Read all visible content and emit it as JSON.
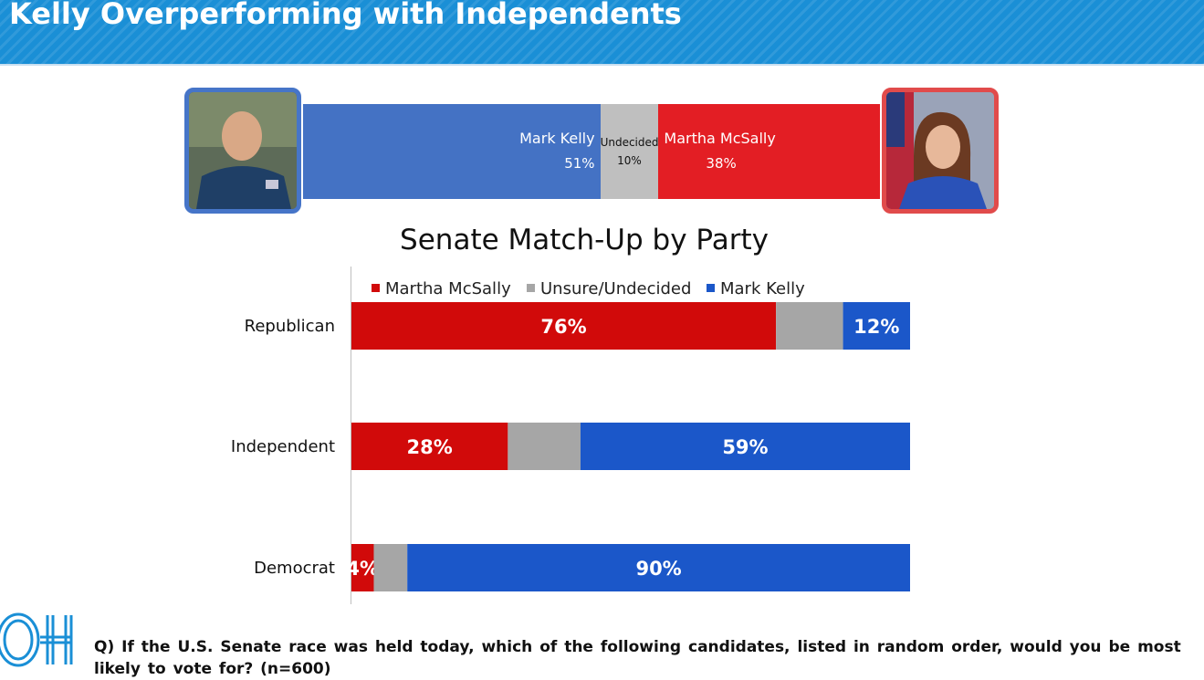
{
  "header": {
    "title": "Kelly Overperforming with Independents"
  },
  "topline": {
    "segments": [
      {
        "name": "Mark Kelly",
        "value_text": "51%",
        "value": 51,
        "color": "#4472c4"
      },
      {
        "name": "Undecided",
        "value_text": "10%",
        "value": 10,
        "color": "#bfbfbf"
      },
      {
        "name": "Martha McSally",
        "value_text": "38%",
        "value": 38,
        "color": "#e31e24"
      }
    ]
  },
  "chart_data": {
    "type": "bar",
    "orientation": "horizontal-stacked",
    "title": "Senate Match-Up by Party",
    "categories": [
      "Republican",
      "Independent",
      "Democrat"
    ],
    "series": [
      {
        "name": "Martha McSally",
        "color": "#d10a0a",
        "values": [
          76,
          28,
          4
        ],
        "labels": [
          "76%",
          "28%",
          "4%"
        ]
      },
      {
        "name": "Unsure/Undecided",
        "color": "#a6a6a6",
        "values": [
          12,
          13,
          6
        ],
        "labels": [
          "",
          "",
          ""
        ]
      },
      {
        "name": "Mark Kelly",
        "color": "#1b57c9",
        "values": [
          12,
          59,
          90
        ],
        "labels": [
          "12%",
          "59%",
          "90%"
        ]
      }
    ],
    "xlim": [
      0,
      100
    ],
    "legend_position": "top",
    "grid": false
  },
  "footer": {
    "logo_text": "OH",
    "question": "Q)  If the U.S. Senate race was held today, which of the following candidates, listed in random order, would you be most likely to vote for? (n=600)"
  }
}
